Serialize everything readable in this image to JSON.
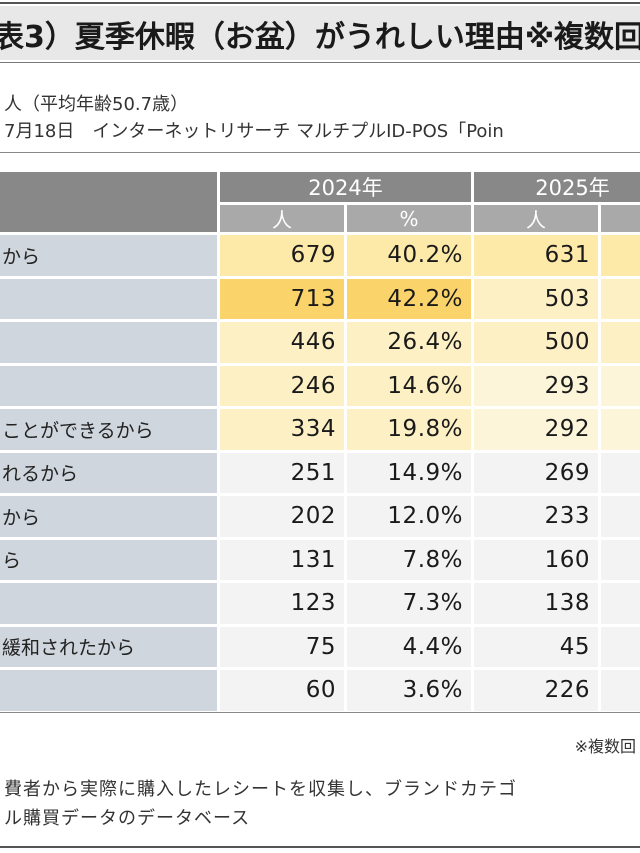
{
  "title": "表3）夏季休暇（お盆）がうれしい理由※複数回",
  "meta": {
    "line1": "人（平均年齢50.7歳）",
    "line2": "7月18日　インターネットリサーチ マルチプルID-POS「Poin"
  },
  "chart_data": {
    "type": "table",
    "years": [
      "2024年",
      "2025年"
    ],
    "units": [
      "人",
      "%",
      "人"
    ],
    "rows": [
      {
        "label": "から",
        "v2024_n": "679",
        "v2024_pct": "40.2%",
        "v2025_n": "631"
      },
      {
        "label": "",
        "v2024_n": "713",
        "v2024_pct": "42.2%",
        "v2025_n": "503"
      },
      {
        "label": "",
        "v2024_n": "446",
        "v2024_pct": "26.4%",
        "v2025_n": "500"
      },
      {
        "label": "",
        "v2024_n": "246",
        "v2024_pct": "14.6%",
        "v2025_n": "293"
      },
      {
        "label": "ことができるから",
        "v2024_n": "334",
        "v2024_pct": "19.8%",
        "v2025_n": "292"
      },
      {
        "label": "れるから",
        "v2024_n": "251",
        "v2024_pct": "14.9%",
        "v2025_n": "269"
      },
      {
        "label": "から",
        "v2024_n": "202",
        "v2024_pct": "12.0%",
        "v2025_n": "233"
      },
      {
        "label": "ら",
        "v2024_n": "131",
        "v2024_pct": "7.8%",
        "v2025_n": "160"
      },
      {
        "label": "",
        "v2024_n": "123",
        "v2024_pct": "7.3%",
        "v2025_n": "138"
      },
      {
        "label": "緩和されたから",
        "v2024_n": "75",
        "v2024_pct": "4.4%",
        "v2025_n": "45"
      },
      {
        "label": "",
        "v2024_n": "60",
        "v2024_pct": "3.6%",
        "v2025_n": "226"
      }
    ],
    "shading": [
      [
        "#fde9a8",
        "#fde9a8",
        "#fde9a8"
      ],
      [
        "#fad46a",
        "#fad46a",
        "#fdf0c4"
      ],
      [
        "#fdf0c4",
        "#fdf0c4",
        "#fdf0c4"
      ],
      [
        "#fdf0c4",
        "#fdf0c4",
        "#fdf5da"
      ],
      [
        "#fdf0c4",
        "#fdf0c4",
        "#fdf5da"
      ],
      [
        "#f3f3f3",
        "#f3f3f3",
        "#f3f3f3"
      ],
      [
        "#f3f3f3",
        "#f3f3f3",
        "#f3f3f3"
      ],
      [
        "#f3f3f3",
        "#f3f3f3",
        "#f3f3f3"
      ],
      [
        "#f3f3f3",
        "#f3f3f3",
        "#f3f3f3"
      ],
      [
        "#f3f3f3",
        "#f3f3f3",
        "#f3f3f3"
      ],
      [
        "#f3f3f3",
        "#f3f3f3",
        "#f3f3f3"
      ]
    ]
  },
  "footnote": "※複数回",
  "source": {
    "line1": "費者から実際に購入したレシートを収集し、ブランドカテゴ",
    "line2": "ル購買データのデータベース"
  }
}
